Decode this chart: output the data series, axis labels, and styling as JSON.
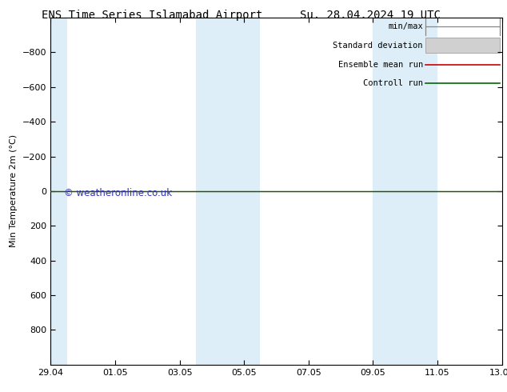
{
  "title_left": "ENS Time Series Islamabad Airport",
  "title_right": "Su. 28.04.2024 19 UTC",
  "ylabel": "Min Temperature 2m (°C)",
  "ylim_bottom": 1000,
  "ylim_top": -1000,
  "yticks": [
    -800,
    -600,
    -400,
    -200,
    0,
    200,
    400,
    600,
    800
  ],
  "xlim": [
    0,
    14
  ],
  "xtick_labels": [
    "29.04",
    "01.05",
    "03.05",
    "05.05",
    "07.05",
    "09.05",
    "11.05",
    "13.05"
  ],
  "xtick_positions": [
    0,
    2,
    4,
    6,
    8,
    10,
    12,
    14
  ],
  "shaded_regions": [
    {
      "start": 0.0,
      "end": 0.5,
      "color": "#ddeef8"
    },
    {
      "start": 4.5,
      "end": 6.5,
      "color": "#ddeef8"
    },
    {
      "start": 10.0,
      "end": 12.0,
      "color": "#ddeef8"
    }
  ],
  "control_run_color": "#006600",
  "ensemble_mean_color": "#cc0000",
  "minmax_color": "#888888",
  "std_dev_fill_color": "#d0d0d0",
  "std_dev_edge_color": "#aaaaaa",
  "watermark": "© weatheronline.co.uk",
  "watermark_color": "#3333bb",
  "background_color": "#ffffff",
  "title_fontsize": 10,
  "label_fontsize": 8,
  "tick_fontsize": 8,
  "legend_fontsize": 7.5
}
